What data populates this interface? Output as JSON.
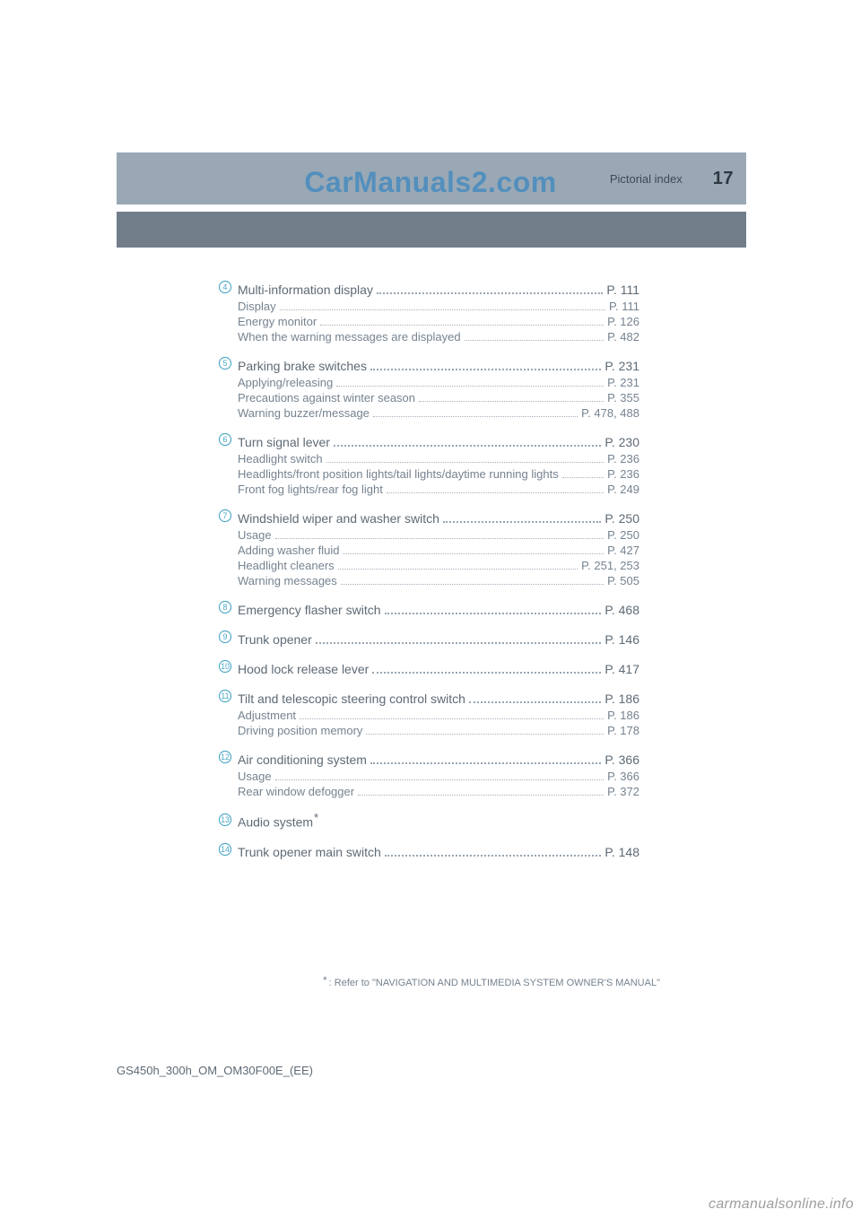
{
  "watermark_top": "CarManuals2.com",
  "watermark_bottom": "carmanualsonline.info",
  "header": {
    "section": "Pictorial index",
    "page_number": "17"
  },
  "bullet_color": "#4aa7c7",
  "colors": {
    "header_bg": "#9aa8b5",
    "dark_bar_bg": "#717e8a",
    "text_main": "#5e6a75",
    "text_sub": "#768390"
  },
  "entries": [
    {
      "num": "4",
      "title": "Multi-information display",
      "page": "P. 111",
      "subs": [
        {
          "label": "Display",
          "page": "P. 111"
        },
        {
          "label": "Energy monitor",
          "page": "P. 126"
        },
        {
          "label": "When the warning messages are displayed",
          "page": "P. 482"
        }
      ]
    },
    {
      "num": "5",
      "title": "Parking brake switches",
      "page": "P. 231",
      "subs": [
        {
          "label": "Applying/releasing",
          "page": "P. 231"
        },
        {
          "label": "Precautions against winter season",
          "page": "P. 355"
        },
        {
          "label": "Warning buzzer/message",
          "page": "P. 478, 488"
        }
      ]
    },
    {
      "num": "6",
      "title": "Turn signal lever",
      "page": "P. 230",
      "subs": [
        {
          "label": "Headlight switch",
          "page": "P. 236"
        },
        {
          "label": "Headlights/front position lights/tail lights/daytime running lights",
          "page": "P. 236"
        },
        {
          "label": "Front fog lights/rear fog light",
          "page": "P. 249"
        }
      ]
    },
    {
      "num": "7",
      "title": "Windshield wiper and washer switch",
      "page": "P. 250",
      "subs": [
        {
          "label": "Usage",
          "page": "P. 250"
        },
        {
          "label": "Adding washer fluid",
          "page": "P. 427"
        },
        {
          "label": "Headlight cleaners",
          "page": "P. 251, 253"
        },
        {
          "label": "Warning messages",
          "page": "P. 505"
        }
      ]
    },
    {
      "num": "8",
      "title": "Emergency flasher switch",
      "page": "P. 468",
      "subs": []
    },
    {
      "num": "9",
      "title": "Trunk opener",
      "page": "P. 146",
      "subs": []
    },
    {
      "num": "10",
      "title": "Hood lock release lever",
      "page": "P. 417",
      "subs": []
    },
    {
      "num": "11",
      "title": "Tilt and telescopic steering control switch",
      "page": "P. 186",
      "subs": [
        {
          "label": "Adjustment",
          "page": "P. 186"
        },
        {
          "label": "Driving position memory",
          "page": "P. 178"
        }
      ]
    },
    {
      "num": "12",
      "title": "Air conditioning system",
      "page": "P. 366",
      "subs": [
        {
          "label": "Usage",
          "page": "P. 366"
        },
        {
          "label": "Rear window defogger",
          "page": "P. 372"
        }
      ]
    },
    {
      "num": "13",
      "title": "Audio system",
      "title_star": true,
      "no_page": true,
      "subs": []
    },
    {
      "num": "14",
      "title": "Trunk opener main switch",
      "page": "P. 148",
      "subs": []
    }
  ],
  "footnote": {
    "star": "*",
    "text": ": Refer to \"NAVIGATION AND MULTIMEDIA SYSTEM OWNER'S MANUAL\""
  },
  "doc_id": "GS450h_300h_OM_OM30F00E_(EE)"
}
